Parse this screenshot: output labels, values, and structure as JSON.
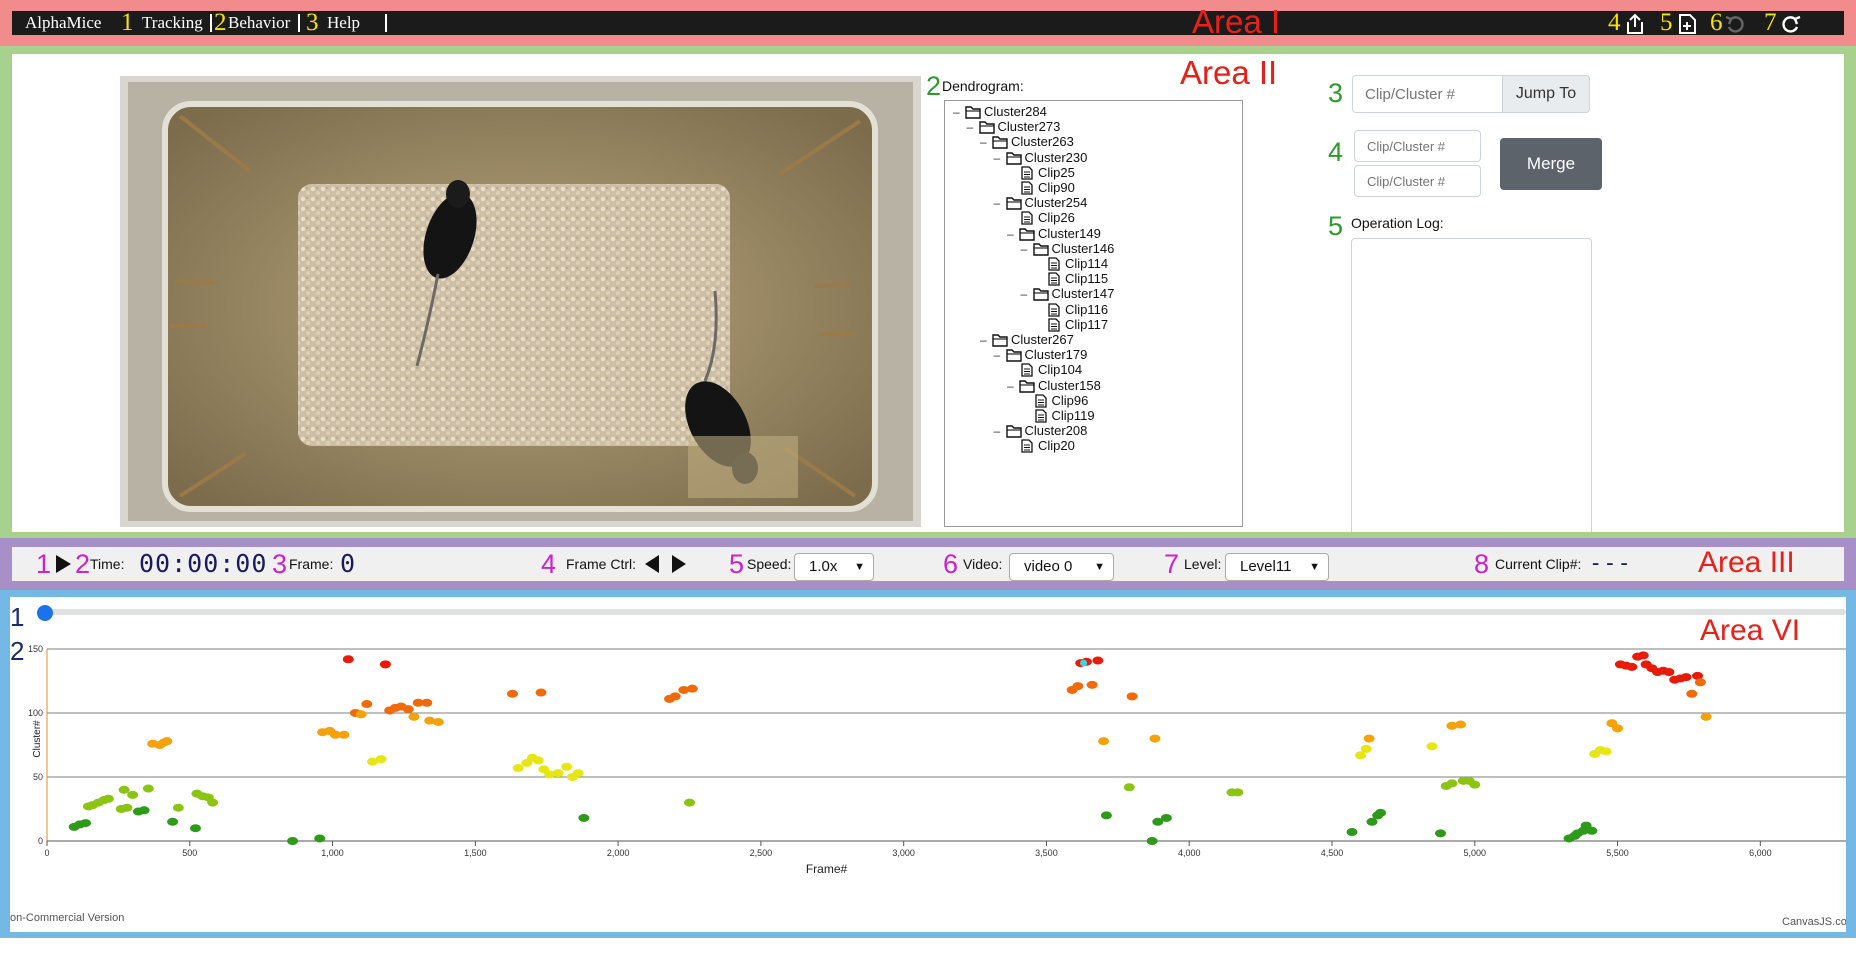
{
  "area_labels": {
    "area1": "Area I",
    "area2": "Area II",
    "area3": "Area III",
    "area6": "Area VI"
  },
  "navbar": {
    "brand": "AlphaMice",
    "menu": [
      {
        "num": "1",
        "label": "Tracking"
      },
      {
        "num": "2",
        "label": "Behavior"
      },
      {
        "num": "3",
        "label": "Help"
      }
    ],
    "icon_nums": [
      "4",
      "5",
      "6",
      "7"
    ],
    "icons": [
      "export-icon",
      "add-file-icon",
      "undo-icon",
      "redo-icon"
    ]
  },
  "video": {
    "num": "1"
  },
  "dendrogram": {
    "num": "2",
    "label": "Dendrogram:",
    "nodes": [
      {
        "label": "Cluster284",
        "depth": 0,
        "type": "folder"
      },
      {
        "label": "Cluster273",
        "depth": 1,
        "type": "folder"
      },
      {
        "label": "Cluster263",
        "depth": 2,
        "type": "folder"
      },
      {
        "label": "Cluster230",
        "depth": 3,
        "type": "folder"
      },
      {
        "label": "Clip25",
        "depth": 4,
        "type": "file"
      },
      {
        "label": "Clip90",
        "depth": 4,
        "type": "file"
      },
      {
        "label": "Cluster254",
        "depth": 3,
        "type": "folder"
      },
      {
        "label": "Clip26",
        "depth": 4,
        "type": "file"
      },
      {
        "label": "Cluster149",
        "depth": 4,
        "type": "folder"
      },
      {
        "label": "Cluster146",
        "depth": 5,
        "type": "folder"
      },
      {
        "label": "Clip114",
        "depth": 6,
        "type": "file"
      },
      {
        "label": "Clip115",
        "depth": 6,
        "type": "file"
      },
      {
        "label": "Cluster147",
        "depth": 5,
        "type": "folder"
      },
      {
        "label": "Clip116",
        "depth": 6,
        "type": "file"
      },
      {
        "label": "Clip117",
        "depth": 6,
        "type": "file"
      },
      {
        "label": "Cluster267",
        "depth": 2,
        "type": "folder"
      },
      {
        "label": "Cluster179",
        "depth": 3,
        "type": "folder"
      },
      {
        "label": "Clip104",
        "depth": 4,
        "type": "file"
      },
      {
        "label": "Cluster158",
        "depth": 4,
        "type": "folder"
      },
      {
        "label": "Clip96",
        "depth": 5,
        "type": "file"
      },
      {
        "label": "Clip119",
        "depth": 5,
        "type": "file"
      },
      {
        "label": "Cluster208",
        "depth": 3,
        "type": "folder"
      },
      {
        "label": "Clip20",
        "depth": 4,
        "type": "file"
      }
    ]
  },
  "jump": {
    "num": "3",
    "placeholder": "Clip/Cluster #",
    "button": "Jump To"
  },
  "merge": {
    "num": "4",
    "placeholder1": "Clip/Cluster #",
    "placeholder2": "Clip/Cluster #",
    "button": "Merge"
  },
  "oplog": {
    "num": "5",
    "label": "Operation Log:",
    "value": ""
  },
  "controls": {
    "play_num": "1",
    "time_num": "2",
    "time_label": "Time:",
    "time_value": "00:00:00",
    "frame_num": "3",
    "frame_label": "Frame:",
    "frame_value": "0",
    "framectrl_num": "4",
    "framectrl_label": "Frame Ctrl:",
    "speed_num": "5",
    "speed_label": "Speed:",
    "speed_value": "1.0x",
    "video_num": "6",
    "video_label": "Video:",
    "video_value": "video 0",
    "level_num": "7",
    "level_label": "Level:",
    "level_value": "Level11",
    "clip_num": "8",
    "clip_label": "Current Clip#:",
    "clip_value": "---"
  },
  "timeline": {
    "num": "1",
    "slider_value": 0
  },
  "chart_num": "2",
  "chart_data": {
    "type": "scatter",
    "xlabel": "Frame#",
    "ylabel": "Cluster#",
    "xlim": [
      0,
      6300
    ],
    "ylim": [
      0,
      150
    ],
    "xticks": [
      0,
      500,
      1000,
      1500,
      2000,
      2500,
      3000,
      3500,
      4000,
      4500,
      5000,
      5500,
      6000
    ],
    "xtick_labels": [
      "0",
      "500",
      "1,000",
      "1,500",
      "2,000",
      "2,500",
      "3,000",
      "3,500",
      "4,000",
      "4,500",
      "5,000",
      "5,500",
      "6,000"
    ],
    "yticks": [
      0,
      50,
      100,
      150
    ],
    "ytick_labels": [
      "0",
      "50",
      "100",
      "150"
    ],
    "grid": true,
    "colorscale": [
      "#2e9a1a",
      "#8bc412",
      "#e6e612",
      "#f5a20a",
      "#f06a0a",
      "#e81a0a"
    ],
    "points": [
      [
        95,
        11
      ],
      [
        115,
        13
      ],
      [
        135,
        14
      ],
      [
        145,
        27
      ],
      [
        160,
        28
      ],
      [
        180,
        30
      ],
      [
        200,
        32
      ],
      [
        215,
        33
      ],
      [
        260,
        25
      ],
      [
        280,
        26
      ],
      [
        320,
        23
      ],
      [
        340,
        24
      ],
      [
        270,
        40
      ],
      [
        300,
        36
      ],
      [
        355,
        41
      ],
      [
        440,
        15
      ],
      [
        460,
        26
      ],
      [
        520,
        10
      ],
      [
        525,
        37
      ],
      [
        545,
        35
      ],
      [
        565,
        34
      ],
      [
        580,
        30
      ],
      [
        370,
        76
      ],
      [
        395,
        75
      ],
      [
        410,
        77
      ],
      [
        420,
        78
      ],
      [
        860,
        0
      ],
      [
        955,
        2
      ],
      [
        965,
        85
      ],
      [
        990,
        86
      ],
      [
        1010,
        83
      ],
      [
        1040,
        83
      ],
      [
        1055,
        142
      ],
      [
        1080,
        100
      ],
      [
        1100,
        99
      ],
      [
        1120,
        107
      ],
      [
        1140,
        62
      ],
      [
        1170,
        64
      ],
      [
        1185,
        138
      ],
      [
        1200,
        102
      ],
      [
        1220,
        104
      ],
      [
        1240,
        105
      ],
      [
        1265,
        103
      ],
      [
        1285,
        97
      ],
      [
        1300,
        108
      ],
      [
        1330,
        108
      ],
      [
        1340,
        94
      ],
      [
        1370,
        93
      ],
      [
        1630,
        115
      ],
      [
        1730,
        116
      ],
      [
        1650,
        57
      ],
      [
        1680,
        61
      ],
      [
        1700,
        65
      ],
      [
        1720,
        63
      ],
      [
        1740,
        56
      ],
      [
        1760,
        52
      ],
      [
        1790,
        53
      ],
      [
        1820,
        58
      ],
      [
        1840,
        50
      ],
      [
        1860,
        53
      ],
      [
        1880,
        18
      ],
      [
        2180,
        111
      ],
      [
        2200,
        113
      ],
      [
        2230,
        118
      ],
      [
        2260,
        119
      ],
      [
        2250,
        30
      ],
      [
        3590,
        118
      ],
      [
        3610,
        121
      ],
      [
        3620,
        139
      ],
      [
        3640,
        140
      ],
      [
        3660,
        122
      ],
      [
        3680,
        141
      ],
      [
        3700,
        78
      ],
      [
        3710,
        20
      ],
      [
        3790,
        42
      ],
      [
        3800,
        113
      ],
      [
        3880,
        80
      ],
      [
        3870,
        0
      ],
      [
        3890,
        15
      ],
      [
        3920,
        18
      ],
      [
        4170,
        38
      ],
      [
        4150,
        38
      ],
      [
        4570,
        7
      ],
      [
        4600,
        67
      ],
      [
        4620,
        72
      ],
      [
        4630,
        80
      ],
      [
        4640,
        15
      ],
      [
        4660,
        20
      ],
      [
        4670,
        22
      ],
      [
        4850,
        74
      ],
      [
        4880,
        6
      ],
      [
        4920,
        90
      ],
      [
        4950,
        91
      ],
      [
        4900,
        43
      ],
      [
        4920,
        45
      ],
      [
        4960,
        47
      ],
      [
        4980,
        47
      ],
      [
        5000,
        44
      ],
      [
        5330,
        2
      ],
      [
        5350,
        4
      ],
      [
        5360,
        6
      ],
      [
        5380,
        8
      ],
      [
        5390,
        12
      ],
      [
        5410,
        8
      ],
      [
        5420,
        68
      ],
      [
        5440,
        71
      ],
      [
        5460,
        70
      ],
      [
        5480,
        92
      ],
      [
        5500,
        88
      ],
      [
        5510,
        138
      ],
      [
        5530,
        137
      ],
      [
        5550,
        136
      ],
      [
        5570,
        144
      ],
      [
        5590,
        145
      ],
      [
        5600,
        138
      ],
      [
        5620,
        135
      ],
      [
        5640,
        132
      ],
      [
        5660,
        133
      ],
      [
        5680,
        132
      ],
      [
        5700,
        126
      ],
      [
        5720,
        127
      ],
      [
        5740,
        128
      ],
      [
        5760,
        115
      ],
      [
        5780,
        129
      ],
      [
        5790,
        124
      ],
      [
        5810,
        97
      ]
    ],
    "highlight": [
      3630,
      139
    ],
    "highlight_color": "#3cd6e0"
  },
  "chart_footer": {
    "left": "on-Commercial Version",
    "right": "CanvasJS.co"
  }
}
